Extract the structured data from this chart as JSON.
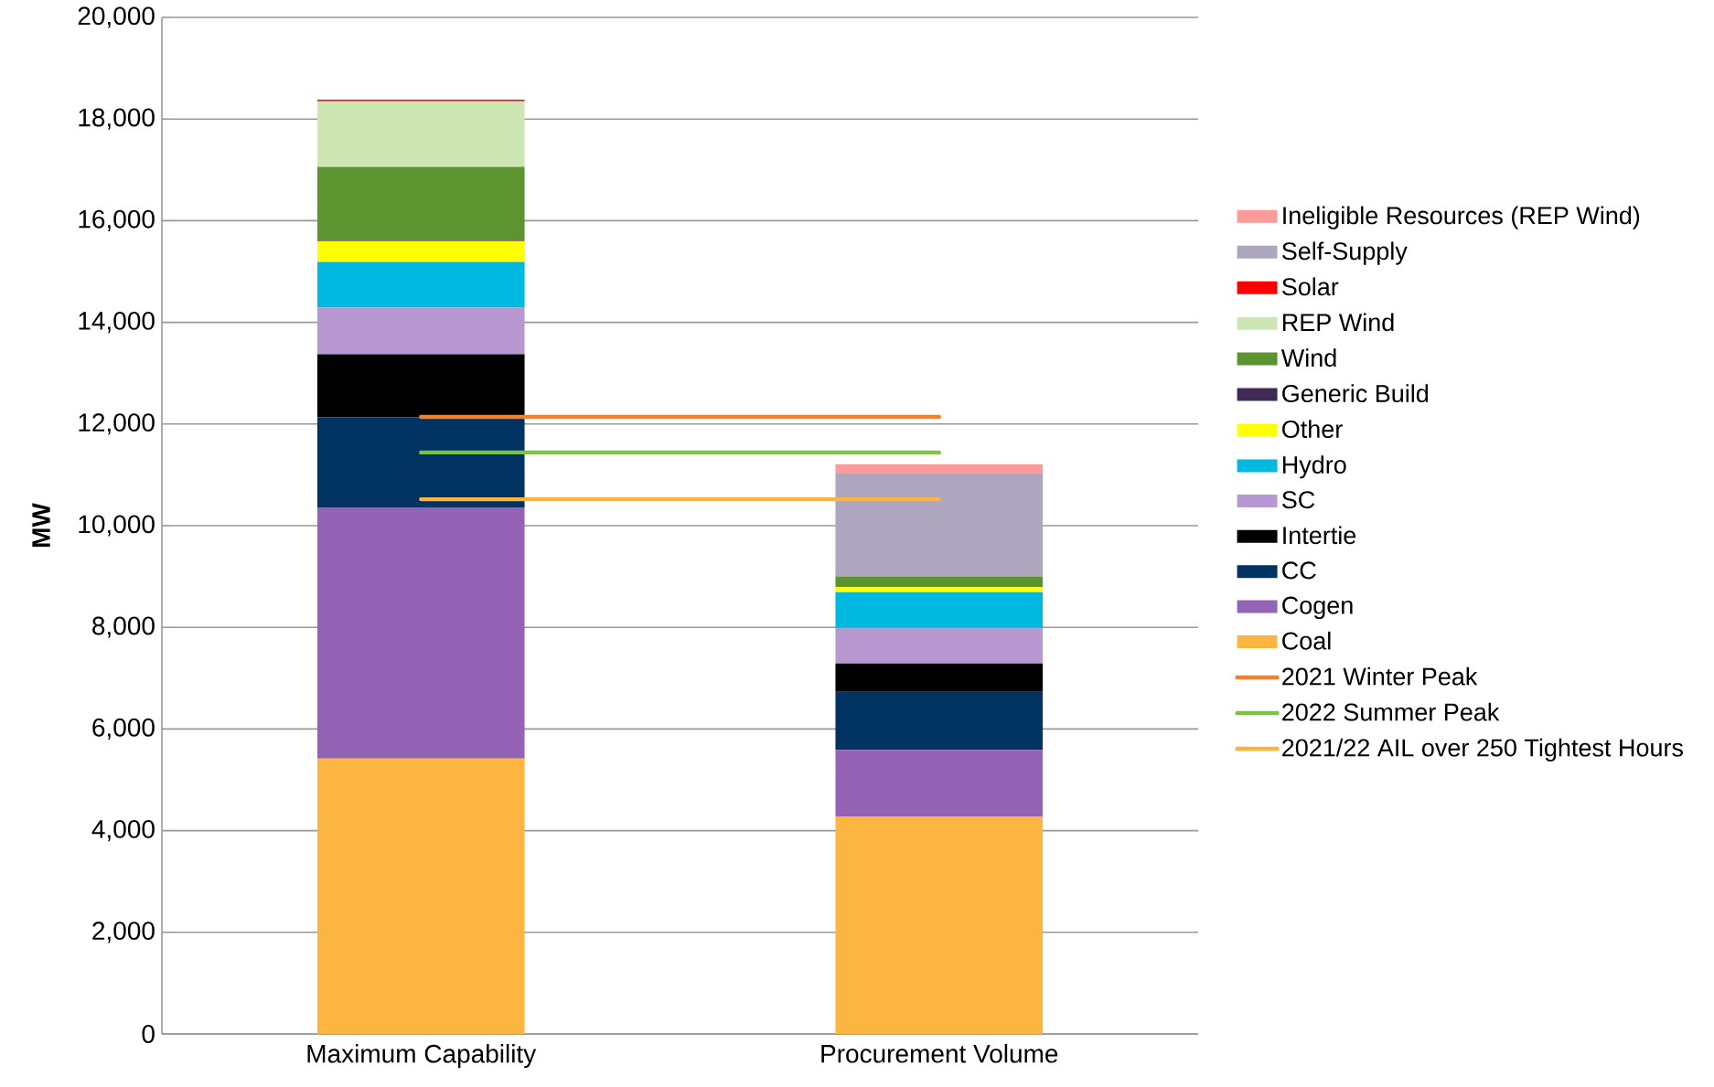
{
  "chart_data": {
    "type": "bar",
    "stacked": true,
    "ylabel": "MW",
    "categories": [
      "Maximum Capability",
      "Procurement Volume"
    ],
    "series": [
      {
        "name": "Coal",
        "color": "#fdb541",
        "values": [
          5420,
          4280
        ]
      },
      {
        "name": "Cogen",
        "color": "#9563b5",
        "values": [
          4940,
          1310
        ]
      },
      {
        "name": "CC",
        "color": "#003262",
        "values": [
          1770,
          1140
        ]
      },
      {
        "name": "Intertie",
        "color": "#000000",
        "values": [
          1240,
          560
        ]
      },
      {
        "name": "SC",
        "color": "#b898d0",
        "values": [
          920,
          700
        ]
      },
      {
        "name": "Hydro",
        "color": "#00b9e1",
        "values": [
          900,
          700
        ]
      },
      {
        "name": "Other",
        "color": "#ffff00",
        "values": [
          410,
          100
        ]
      },
      {
        "name": "Generic Build",
        "color": "#412956",
        "values": [
          20,
          0
        ]
      },
      {
        "name": "Wind",
        "color": "#5c9430",
        "values": [
          1440,
          210
        ]
      },
      {
        "name": "REP Wind",
        "color": "#cde6b4",
        "values": [
          1290,
          0
        ]
      },
      {
        "name": "Solar",
        "color": "#ff0000",
        "values": [
          30,
          0
        ]
      },
      {
        "name": "Self-Supply",
        "color": "#aea5be",
        "values": [
          0,
          2040
        ]
      },
      {
        "name": "Ineligible Resources (REP Wind)",
        "color": "#ff9a9a",
        "values": [
          0,
          170
        ]
      },
      {
        "name": "2021 Winter Peak",
        "type": "line",
        "color": "#f4812e",
        "values": [
          12140,
          12140
        ]
      },
      {
        "name": "2022 Summer Peak",
        "type": "line",
        "color": "#7dc242",
        "values": [
          11440,
          11440
        ]
      },
      {
        "name": "2021/22 AIL over 250 Tightest Hours",
        "type": "line",
        "color": "#fcb43f",
        "values": [
          10520,
          10520
        ]
      }
    ],
    "ylim": [
      0,
      20000
    ],
    "yticks": [
      0,
      {
        "value": 2000,
        "label": "2,000"
      },
      {
        "value": 4000,
        "label": "4,000"
      },
      {
        "value": 6000,
        "label": "6,000"
      },
      {
        "value": 8000,
        "label": "8,000"
      },
      {
        "value": 10000,
        "label": "10,000"
      },
      {
        "value": 12000,
        "label": "12,000"
      },
      {
        "value": 14000,
        "label": "14,000"
      },
      {
        "value": 16000,
        "label": "16,000"
      },
      {
        "value": 18000,
        "label": "18,000"
      },
      {
        "value": 20000,
        "label": "20,000"
      }
    ],
    "grid": "y",
    "legend": "right"
  }
}
